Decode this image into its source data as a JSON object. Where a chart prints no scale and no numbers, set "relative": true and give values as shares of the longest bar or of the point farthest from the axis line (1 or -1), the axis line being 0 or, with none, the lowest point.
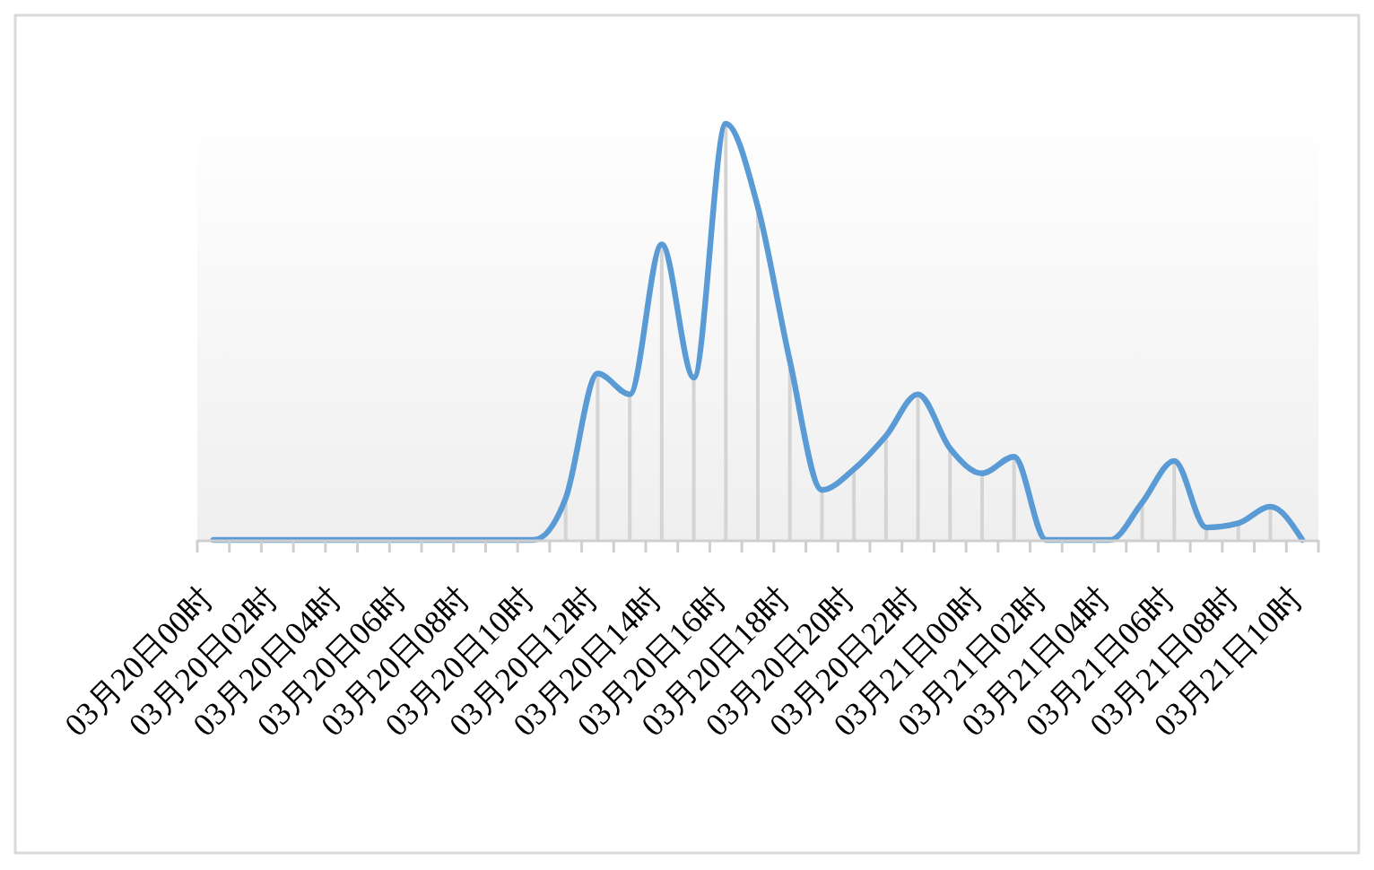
{
  "chart_data": {
    "type": "line",
    "relative": true,
    "categories": [
      "03月20日00时",
      null,
      "03月20日02时",
      null,
      "03月20日04时",
      null,
      "03月20日06时",
      null,
      "03月20日08时",
      null,
      "03月20日10时",
      null,
      "03月20日12时",
      null,
      "03月20日14时",
      null,
      "03月20日16时",
      null,
      "03月20日18时",
      null,
      "03月20日20时",
      null,
      "03月20日22时",
      null,
      "03月21日00时",
      null,
      "03月21日02时",
      null,
      "03月21日04时",
      null,
      "03月21日06时",
      null,
      "03月21日08时",
      null,
      "03月21日10时"
    ],
    "series": [
      {
        "type": "bar",
        "color": "#d4d4d4",
        "values": [
          0,
          0,
          0,
          0,
          0,
          0,
          0,
          0,
          0,
          0,
          0,
          0.1,
          0.4,
          0.35,
          0.71,
          0.39,
          1,
          0.8,
          0.43,
          0.12,
          0.17,
          0.25,
          0.35,
          0.22,
          0.16,
          0.2,
          0,
          0,
          0,
          0.09,
          0.19,
          0.03,
          0.04,
          0.08,
          0
        ]
      },
      {
        "color": "#5b9bd5",
        "values": [
          0,
          0,
          0,
          0,
          0,
          0,
          0,
          0,
          0,
          0,
          0,
          0.1,
          0.4,
          0.35,
          0.71,
          0.39,
          1,
          0.8,
          0.43,
          0.12,
          0.17,
          0.25,
          0.35,
          0.22,
          0.16,
          0.2,
          0,
          0,
          0,
          0.09,
          0.19,
          0.03,
          0.04,
          0.08,
          0
        ]
      }
    ]
  }
}
